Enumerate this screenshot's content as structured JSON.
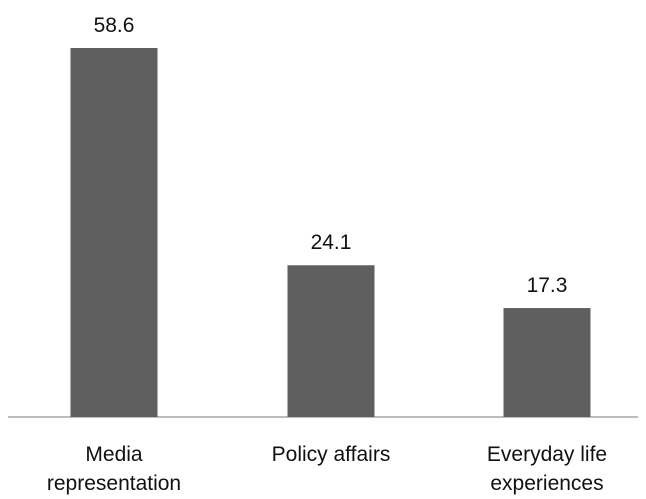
{
  "chart_data": {
    "type": "bar",
    "categories": [
      [
        "Media",
        "representation"
      ],
      [
        "Policy affairs"
      ],
      [
        "Everyday life",
        "experiences"
      ]
    ],
    "values": [
      58.6,
      24.1,
      17.3
    ],
    "data_labels": [
      "58.6",
      "24.1",
      "17.3"
    ],
    "title": "",
    "xlabel": "",
    "ylabel": "",
    "ylim": [
      0,
      65
    ],
    "grid": false,
    "legend": "none",
    "colors": {
      "bar": "#5f5f5f",
      "axis": "#a6a6a6",
      "text": "#111111"
    }
  }
}
